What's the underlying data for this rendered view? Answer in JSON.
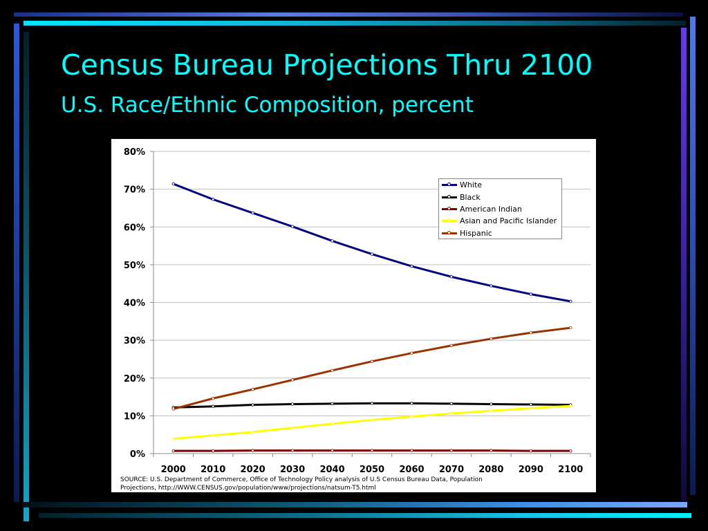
{
  "slide": {
    "title": "Census Bureau Projections Thru 2100",
    "subtitle": "U.S. Race/Ethnic Composition, percent",
    "source_line1": "SOURCE: U.S. Department of Commerce, Office of Technology Policy analysis of U.S Census Bureau Data, Population",
    "source_line2": "Projections, http://WWW.CENSUS.gov/population/www/projections/natsum-T5.html"
  },
  "colors": {
    "background": "#000000",
    "title_text": "#00ffff",
    "chart_bg": "#ffffff",
    "grid": "#c0c0c0"
  },
  "chart_data": {
    "type": "line",
    "title": "",
    "xlabel": "",
    "ylabel": "",
    "x": [
      2000,
      2010,
      2020,
      2030,
      2040,
      2050,
      2060,
      2070,
      2080,
      2090,
      2100
    ],
    "x_tick_labels": [
      "2000",
      "2010",
      "2020",
      "2030",
      "2040",
      "2050",
      "2060",
      "2070",
      "2080",
      "2090",
      "2100"
    ],
    "ylim": [
      0,
      80
    ],
    "y_ticks": [
      0,
      10,
      20,
      30,
      40,
      50,
      60,
      70,
      80
    ],
    "y_tick_labels": [
      "0%",
      "10%",
      "20%",
      "30%",
      "40%",
      "50%",
      "60%",
      "70%",
      "80%"
    ],
    "grid": true,
    "legend_position": "top-right",
    "series": [
      {
        "name": "White",
        "color": "#000080",
        "values": [
          71.4,
          67.3,
          63.7,
          60.1,
          56.3,
          52.8,
          49.6,
          46.8,
          44.4,
          42.2,
          40.3
        ]
      },
      {
        "name": "Black",
        "color": "#000000",
        "values": [
          12.2,
          12.5,
          12.9,
          13.1,
          13.2,
          13.3,
          13.3,
          13.2,
          13.1,
          13.0,
          12.9
        ]
      },
      {
        "name": "American Indian",
        "color": "#800000",
        "values": [
          0.7,
          0.7,
          0.8,
          0.8,
          0.8,
          0.8,
          0.8,
          0.8,
          0.8,
          0.7,
          0.7
        ]
      },
      {
        "name": "Asian and Pacific Islander",
        "color": "#ffff00",
        "values": [
          3.9,
          4.8,
          5.7,
          6.8,
          7.9,
          8.9,
          9.8,
          10.6,
          11.3,
          12.0,
          12.6
        ]
      },
      {
        "name": "Hispanic",
        "color": "#993300",
        "values": [
          11.8,
          14.6,
          17.0,
          19.5,
          22.0,
          24.4,
          26.6,
          28.6,
          30.4,
          32.0,
          33.3
        ]
      }
    ]
  }
}
